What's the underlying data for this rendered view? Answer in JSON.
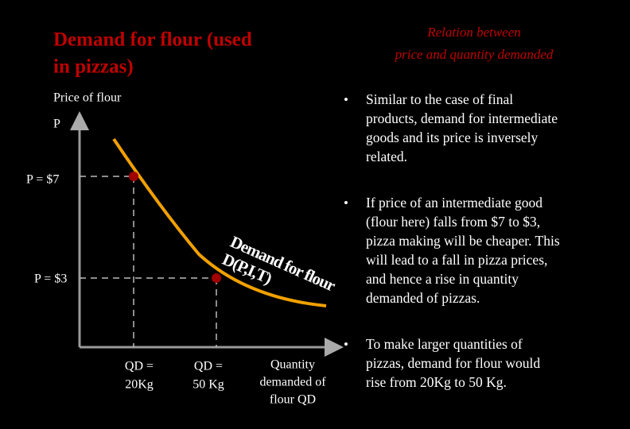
{
  "header": {
    "title": [
      "Demand for flour (used",
      "in pizzas)"
    ],
    "subtitle": [
      "Relation between",
      "price and quantity demanded"
    ]
  },
  "diagram": {
    "y_axis_label": "Price of flour",
    "y_axis_symbol": "P",
    "price_high": "P = $7",
    "price_low": "P = $3",
    "curve_label": [
      "Demand for flour",
      "D(P,I,T)"
    ],
    "qty_low": [
      "QD =",
      "20Kg"
    ],
    "qty_high": [
      "QD =",
      "50 Kg"
    ],
    "x_axis_label": [
      "Quantity",
      "demanded of",
      "flour  QD"
    ]
  },
  "bullets": [
    [
      "Similar to the case of final",
      "products, demand for intermediate",
      "goods and its price is inversely",
      "related."
    ],
    [
      "If price of an intermediate good",
      "(flour here) falls from $7 to $3,",
      "pizza making will be cheaper. This",
      "will lead to a fall in pizza prices,",
      "and hence a rise in quantity",
      "demanded of pizzas."
    ],
    [
      "To make larger quantities of",
      "pizzas, demand for flour would",
      "rise from 20Kg to 50 Kg."
    ]
  ]
}
